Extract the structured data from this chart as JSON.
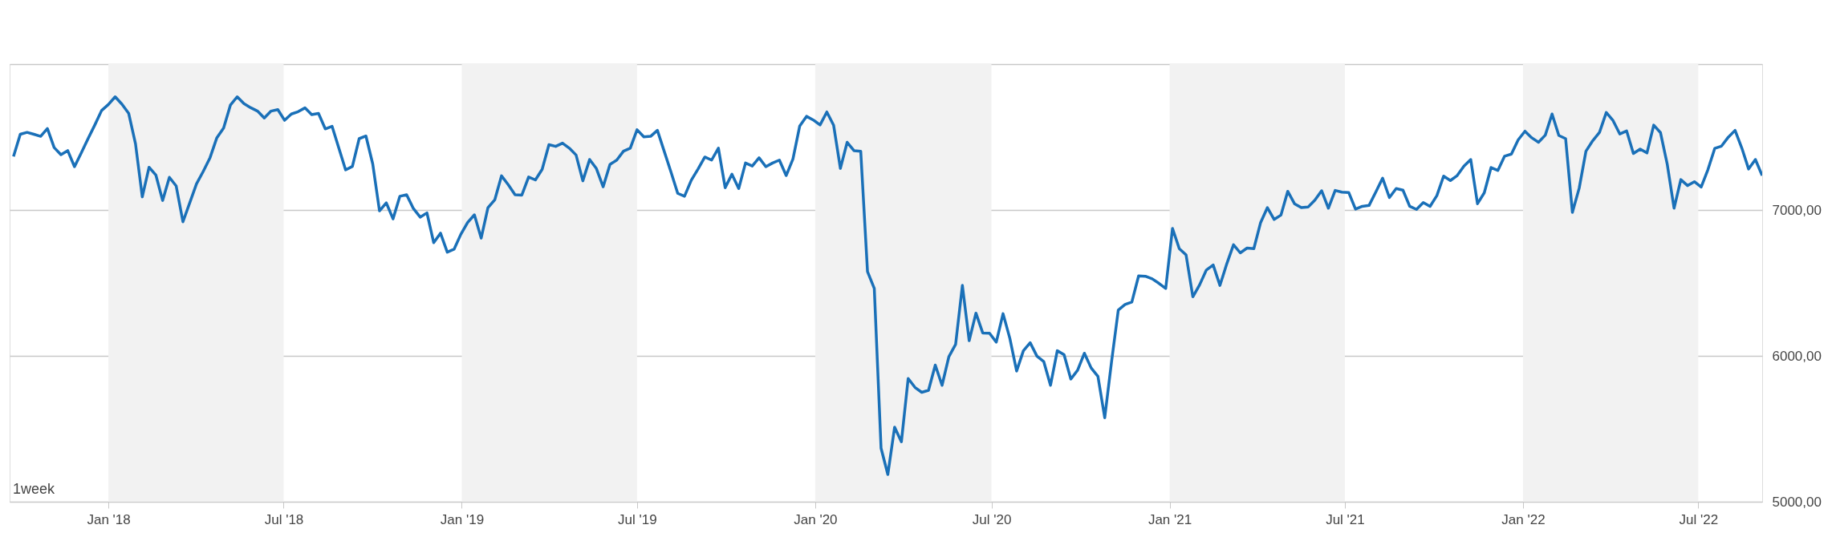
{
  "chart_data": {
    "type": "line",
    "x": [
      "2017-09-25",
      "2017-10-02",
      "2017-10-09",
      "2017-10-16",
      "2017-10-23",
      "2017-10-30",
      "2017-11-06",
      "2017-11-13",
      "2017-11-20",
      "2017-11-27",
      "2017-12-04",
      "2017-12-11",
      "2017-12-18",
      "2017-12-25",
      "2018-01-01",
      "2018-01-08",
      "2018-01-15",
      "2018-01-22",
      "2018-01-29",
      "2018-02-05",
      "2018-02-12",
      "2018-02-19",
      "2018-02-26",
      "2018-03-05",
      "2018-03-12",
      "2018-03-19",
      "2018-03-26",
      "2018-04-02",
      "2018-04-09",
      "2018-04-16",
      "2018-04-23",
      "2018-04-30",
      "2018-05-07",
      "2018-05-14",
      "2018-05-21",
      "2018-05-28",
      "2018-06-04",
      "2018-06-11",
      "2018-06-18",
      "2018-06-25",
      "2018-07-02",
      "2018-07-09",
      "2018-07-16",
      "2018-07-23",
      "2018-07-30",
      "2018-08-06",
      "2018-08-13",
      "2018-08-20",
      "2018-08-27",
      "2018-09-03",
      "2018-09-10",
      "2018-09-17",
      "2018-09-24",
      "2018-10-01",
      "2018-10-08",
      "2018-10-15",
      "2018-10-22",
      "2018-10-29",
      "2018-11-05",
      "2018-11-12",
      "2018-11-19",
      "2018-11-26",
      "2018-12-03",
      "2018-12-10",
      "2018-12-17",
      "2018-12-24",
      "2018-12-31",
      "2019-01-07",
      "2019-01-14",
      "2019-01-21",
      "2019-01-28",
      "2019-02-04",
      "2019-02-11",
      "2019-02-18",
      "2019-02-25",
      "2019-03-04",
      "2019-03-11",
      "2019-03-18",
      "2019-03-25",
      "2019-04-01",
      "2019-04-08",
      "2019-04-15",
      "2019-04-22",
      "2019-04-29",
      "2019-05-06",
      "2019-05-13",
      "2019-05-20",
      "2019-05-27",
      "2019-06-03",
      "2019-06-10",
      "2019-06-17",
      "2019-06-24",
      "2019-07-01",
      "2019-07-08",
      "2019-07-15",
      "2019-07-22",
      "2019-07-29",
      "2019-08-05",
      "2019-08-12",
      "2019-08-19",
      "2019-08-26",
      "2019-09-02",
      "2019-09-09",
      "2019-09-16",
      "2019-09-23",
      "2019-09-30",
      "2019-10-07",
      "2019-10-14",
      "2019-10-21",
      "2019-10-28",
      "2019-11-04",
      "2019-11-11",
      "2019-11-18",
      "2019-11-25",
      "2019-12-02",
      "2019-12-09",
      "2019-12-16",
      "2019-12-23",
      "2019-12-30",
      "2020-01-06",
      "2020-01-13",
      "2020-01-20",
      "2020-01-27",
      "2020-02-03",
      "2020-02-10",
      "2020-02-17",
      "2020-02-24",
      "2020-03-02",
      "2020-03-09",
      "2020-03-16",
      "2020-03-23",
      "2020-03-30",
      "2020-04-06",
      "2020-04-13",
      "2020-04-20",
      "2020-04-27",
      "2020-05-04",
      "2020-05-11",
      "2020-05-18",
      "2020-05-25",
      "2020-06-01",
      "2020-06-08",
      "2020-06-15",
      "2020-06-22",
      "2020-06-29",
      "2020-07-06",
      "2020-07-13",
      "2020-07-20",
      "2020-07-27",
      "2020-08-03",
      "2020-08-10",
      "2020-08-17",
      "2020-08-24",
      "2020-08-31",
      "2020-09-07",
      "2020-09-14",
      "2020-09-21",
      "2020-09-28",
      "2020-10-05",
      "2020-10-12",
      "2020-10-19",
      "2020-10-26",
      "2020-11-02",
      "2020-11-09",
      "2020-11-16",
      "2020-11-23",
      "2020-11-30",
      "2020-12-07",
      "2020-12-14",
      "2020-12-21",
      "2020-12-28",
      "2021-01-04",
      "2021-01-11",
      "2021-01-18",
      "2021-01-25",
      "2021-02-01",
      "2021-02-08",
      "2021-02-15",
      "2021-02-22",
      "2021-03-01",
      "2021-03-08",
      "2021-03-15",
      "2021-03-22",
      "2021-03-29",
      "2021-04-05",
      "2021-04-12",
      "2021-04-19",
      "2021-04-26",
      "2021-05-03",
      "2021-05-10",
      "2021-05-17",
      "2021-05-24",
      "2021-05-31",
      "2021-06-07",
      "2021-06-14",
      "2021-06-21",
      "2021-06-28",
      "2021-07-05",
      "2021-07-12",
      "2021-07-19",
      "2021-07-26",
      "2021-08-02",
      "2021-08-09",
      "2021-08-16",
      "2021-08-23",
      "2021-08-30",
      "2021-09-06",
      "2021-09-13",
      "2021-09-20",
      "2021-09-27",
      "2021-10-04",
      "2021-10-11",
      "2021-10-18",
      "2021-10-25",
      "2021-11-01",
      "2021-11-08",
      "2021-11-15",
      "2021-11-22",
      "2021-11-29",
      "2021-12-06",
      "2021-12-13",
      "2021-12-20",
      "2021-12-27",
      "2022-01-03",
      "2022-01-10",
      "2022-01-17",
      "2022-01-24",
      "2022-01-31",
      "2022-02-07",
      "2022-02-14",
      "2022-02-21",
      "2022-02-28",
      "2022-03-07",
      "2022-03-14",
      "2022-03-21",
      "2022-03-28",
      "2022-04-04",
      "2022-04-11",
      "2022-04-18",
      "2022-04-25",
      "2022-05-02",
      "2022-05-09",
      "2022-05-16",
      "2022-05-23",
      "2022-05-30",
      "2022-06-06",
      "2022-06-13",
      "2022-06-20",
      "2022-06-27",
      "2022-07-04",
      "2022-07-11",
      "2022-07-18",
      "2022-07-25",
      "2022-08-01",
      "2022-08-08",
      "2022-08-15",
      "2022-08-22",
      "2022-08-29",
      "2022-09-05"
    ],
    "series": [
      {
        "color": "#1a70b8",
        "values": [
          7367,
          7519,
          7532,
          7519,
          7505,
          7558,
          7428,
          7379,
          7407,
          7297,
          7391,
          7489,
          7583,
          7682,
          7723,
          7776,
          7725,
          7662,
          7454,
          7090,
          7293,
          7240,
          7065,
          7224,
          7165,
          6919,
          7049,
          7179,
          7265,
          7359,
          7495,
          7562,
          7719,
          7776,
          7729,
          7701,
          7678,
          7631,
          7678,
          7688,
          7615,
          7658,
          7674,
          7700,
          7654,
          7662,
          7556,
          7574,
          7424,
          7275,
          7299,
          7489,
          7507,
          7316,
          6994,
          7049,
          6939,
          7094,
          7104,
          7010,
          6951,
          6980,
          6776,
          6841,
          6711,
          6731,
          6833,
          6914,
          6967,
          6807,
          7016,
          7069,
          7234,
          7173,
          7104,
          7102,
          7226,
          7206,
          7279,
          7448,
          7436,
          7458,
          7424,
          7377,
          7200,
          7346,
          7284,
          7159,
          7312,
          7342,
          7403,
          7424,
          7550,
          7501,
          7505,
          7546,
          7403,
          7261,
          7114,
          7094,
          7204,
          7281,
          7363,
          7342,
          7424,
          7153,
          7245,
          7147,
          7322,
          7301,
          7358,
          7297,
          7322,
          7342,
          7236,
          7350,
          7576,
          7642,
          7617,
          7583,
          7672,
          7581,
          7285,
          7464,
          7407,
          7403,
          6578,
          6462,
          5367,
          5187,
          5511,
          5411,
          5845,
          5784,
          5750,
          5764,
          5937,
          5798,
          5994,
          6079,
          6483,
          6104,
          6293,
          6157,
          6155,
          6094,
          6289,
          6120,
          5896,
          6035,
          6090,
          5998,
          5961,
          5798,
          6035,
          6008,
          5841,
          5902,
          6018,
          5917,
          5859,
          5576,
          5957,
          6314,
          6352,
          6369,
          6548,
          6546,
          6528,
          6497,
          6462,
          6874,
          6735,
          6692,
          6405,
          6487,
          6589,
          6623,
          6483,
          6630,
          6762,
          6706,
          6739,
          6735,
          6914,
          7016,
          6935,
          6965,
          7128,
          7043,
          7016,
          7020,
          7067,
          7132,
          7012,
          7134,
          7122,
          7120,
          7006,
          7025,
          7031,
          7124,
          7218,
          7085,
          7147,
          7136,
          7025,
          7004,
          7051,
          7025,
          7098,
          7232,
          7202,
          7236,
          7301,
          7346,
          7043,
          7118,
          7291,
          7271,
          7369,
          7383,
          7481,
          7540,
          7495,
          7464,
          7513,
          7658,
          7511,
          7489,
          6984,
          7149,
          7403,
          7475,
          7532,
          7668,
          7613,
          7521,
          7542,
          7387,
          7418,
          7391,
          7582,
          7530,
          7312,
          7012,
          7208,
          7167,
          7194,
          7157,
          7277,
          7422,
          7438,
          7499,
          7546,
          7424,
          7281,
          7346,
          7236
        ]
      }
    ],
    "xlim": [
      "2017-09-21",
      "2022-09-05"
    ],
    "xticks": [
      {
        "value": "2018-01-01",
        "label": "Jan '18"
      },
      {
        "value": "2018-07-01",
        "label": "Jul '18"
      },
      {
        "value": "2019-01-01",
        "label": "Jan '19"
      },
      {
        "value": "2019-07-01",
        "label": "Jul '19"
      },
      {
        "value": "2020-01-01",
        "label": "Jan '20"
      },
      {
        "value": "2020-07-01",
        "label": "Jul '20"
      },
      {
        "value": "2021-01-01",
        "label": "Jan '21"
      },
      {
        "value": "2021-07-01",
        "label": "Jul '21"
      },
      {
        "value": "2022-01-01",
        "label": "Jan '22"
      },
      {
        "value": "2022-07-01",
        "label": "Jul '22"
      }
    ],
    "ylim": [
      5000,
      8000
    ],
    "yticks": [
      {
        "value": 5000,
        "label": "5000,00"
      },
      {
        "value": 6000,
        "label": "6000,00"
      },
      {
        "value": 7000,
        "label": "7000,00"
      },
      {
        "value": 8000,
        "label": null
      }
    ],
    "grid": "y",
    "bands": [
      {
        "axis": "x",
        "from": "2018-01-01",
        "to": "2018-07-01",
        "color": "#f2f2f2"
      },
      {
        "axis": "x",
        "from": "2019-01-01",
        "to": "2019-07-01",
        "color": "#f2f2f2"
      },
      {
        "axis": "x",
        "from": "2020-01-01",
        "to": "2020-07-01",
        "color": "#f2f2f2"
      },
      {
        "axis": "x",
        "from": "2021-01-01",
        "to": "2021-07-01",
        "color": "#f2f2f2"
      },
      {
        "axis": "x",
        "from": "2022-01-01",
        "to": "2022-07-01",
        "color": "#f2f2f2"
      }
    ],
    "annotations": [
      "1week"
    ]
  }
}
